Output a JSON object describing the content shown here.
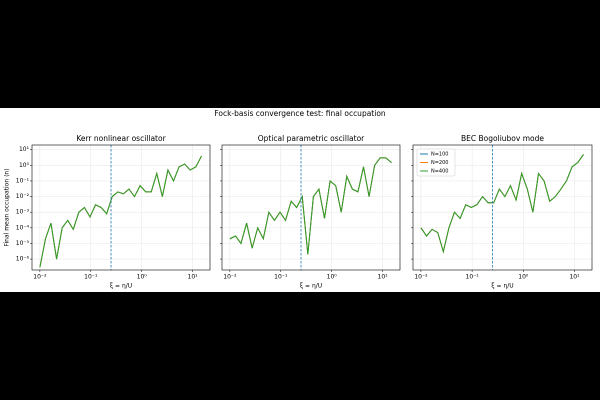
{
  "chart_data": [
    {
      "type": "line",
      "title": "Kerr nonlinear oscillator",
      "suptitle": "Fock-basis convergence test: final occupation",
      "x_label": "ξ = η/U",
      "y_label": "Final mean occupation ⟨n⟩",
      "log_x": true,
      "log_y": true,
      "grid": true,
      "xlim": [
        0.007,
        22
      ],
      "ylim": [
        2e-07,
        20
      ],
      "xticks": [
        {
          "value": 0.01,
          "label": "10⁻²"
        },
        {
          "value": 0.1,
          "label": "10⁻¹"
        },
        {
          "value": 1,
          "label": "10⁰"
        },
        {
          "value": 10,
          "label": "10¹"
        }
      ],
      "yticks": [
        {
          "value": 1e-06,
          "label": "10⁻⁶"
        },
        {
          "value": 1e-05,
          "label": "10⁻⁵"
        },
        {
          "value": 0.0001,
          "label": "10⁻⁴"
        },
        {
          "value": 0.001,
          "label": "10⁻³"
        },
        {
          "value": 0.01,
          "label": "10⁻²"
        },
        {
          "value": 0.1,
          "label": "10⁻¹"
        },
        {
          "value": 1,
          "label": "10⁰"
        },
        {
          "value": 10,
          "label": "10¹"
        }
      ],
      "vline": 0.25,
      "vline_color": "#1f77b4",
      "x": [
        0.01,
        0.0129,
        0.0165,
        0.0213,
        0.0274,
        0.0352,
        0.0453,
        0.0583,
        0.075,
        0.0965,
        0.124,
        0.16,
        0.205,
        0.264,
        0.34,
        0.437,
        0.562,
        0.723,
        0.93,
        1.2,
        1.54,
        1.98,
        2.55,
        3.28,
        4.22,
        5.43,
        6.98,
        8.98,
        11.6,
        15
      ],
      "series": [
        {
          "color": "#1f77b4",
          "values": [
            3e-07,
            2e-05,
            0.0002,
            1e-06,
            0.0001,
            0.0003,
            8e-05,
            0.001,
            0.002,
            0.0005,
            0.003,
            0.002,
            0.0008,
            0.01,
            0.02,
            0.015,
            0.03,
            0.01,
            0.05,
            0.02,
            0.02,
            0.3,
            0.01,
            0.5,
            0.1,
            0.8,
            1.2,
            0.5,
            0.8,
            4
          ]
        },
        {
          "color": "#ff7f0e",
          "values": [
            3e-07,
            2e-05,
            0.0002,
            1e-06,
            0.0001,
            0.0003,
            8e-05,
            0.001,
            0.002,
            0.0005,
            0.003,
            0.002,
            0.0008,
            0.01,
            0.02,
            0.015,
            0.03,
            0.01,
            0.05,
            0.02,
            0.02,
            0.3,
            0.01,
            0.5,
            0.1,
            0.8,
            1.2,
            0.5,
            0.8,
            4
          ]
        },
        {
          "color": "#2ca02c",
          "values": [
            3e-07,
            2e-05,
            0.0002,
            1e-06,
            0.0001,
            0.0003,
            8e-05,
            0.001,
            0.002,
            0.0005,
            0.003,
            0.002,
            0.0008,
            0.01,
            0.02,
            0.015,
            0.03,
            0.01,
            0.05,
            0.02,
            0.02,
            0.3,
            0.01,
            0.5,
            0.1,
            0.8,
            1.2,
            0.5,
            0.8,
            4
          ]
        }
      ]
    },
    {
      "type": "line",
      "title": "Optical parametric oscillator",
      "x_label": "ξ = η/U",
      "log_x": true,
      "log_y": true,
      "grid": true,
      "xlim": [
        0.007,
        22
      ],
      "ylim": [
        2e-07,
        20
      ],
      "xticks": [
        {
          "value": 0.01,
          "label": "10⁻²"
        },
        {
          "value": 0.1,
          "label": "10⁻¹"
        },
        {
          "value": 1,
          "label": "10⁰"
        },
        {
          "value": 10,
          "label": "10¹"
        }
      ],
      "vline": 0.25,
      "vline_color": "#1f77b4",
      "x": [
        0.01,
        0.0129,
        0.0165,
        0.0213,
        0.0274,
        0.0352,
        0.0453,
        0.0583,
        0.075,
        0.0965,
        0.124,
        0.16,
        0.205,
        0.264,
        0.34,
        0.437,
        0.562,
        0.723,
        0.93,
        1.2,
        1.54,
        1.98,
        2.55,
        3.28,
        4.22,
        5.43,
        6.98,
        8.98,
        11.6,
        15
      ],
      "series": [
        {
          "color": "#1f77b4",
          "values": [
            2e-05,
            3e-05,
            1e-05,
            0.0002,
            5e-06,
            0.0001,
            2e-05,
            0.001,
            0.0003,
            0.001,
            0.0003,
            0.005,
            0.002,
            0.01,
            2e-06,
            0.01,
            0.03,
            0.0004,
            0.1,
            0.05,
            0.001,
            0.2,
            0.03,
            0.02,
            0.8,
            0.01,
            1,
            3,
            3,
            1.5
          ]
        },
        {
          "color": "#ff7f0e",
          "values": [
            2e-05,
            3e-05,
            1e-05,
            0.0002,
            5e-06,
            0.0001,
            2e-05,
            0.001,
            0.0003,
            0.001,
            0.0003,
            0.005,
            0.002,
            0.01,
            2e-06,
            0.01,
            0.03,
            0.0004,
            0.1,
            0.05,
            0.001,
            0.2,
            0.03,
            0.02,
            0.8,
            0.01,
            1,
            3,
            3,
            1.5
          ]
        },
        {
          "color": "#2ca02c",
          "values": [
            2e-05,
            3e-05,
            1e-05,
            0.0002,
            5e-06,
            0.0001,
            2e-05,
            0.001,
            0.0003,
            0.001,
            0.0003,
            0.005,
            0.002,
            0.01,
            2e-06,
            0.01,
            0.03,
            0.0004,
            0.1,
            0.05,
            0.001,
            0.2,
            0.03,
            0.02,
            0.8,
            0.01,
            1,
            3,
            3,
            1.5
          ]
        }
      ]
    },
    {
      "type": "line",
      "title": "BEC Bogoliubov mode",
      "x_label": "ξ = η/U",
      "log_x": true,
      "log_y": true,
      "grid": true,
      "legend": "upper left",
      "xlim": [
        0.007,
        22
      ],
      "ylim": [
        2e-07,
        20
      ],
      "xticks": [
        {
          "value": 0.01,
          "label": "10⁻²"
        },
        {
          "value": 0.1,
          "label": "10⁻¹"
        },
        {
          "value": 1,
          "label": "10⁰"
        },
        {
          "value": 10,
          "label": "10¹"
        }
      ],
      "vline": 0.25,
      "vline_color": "#1f77b4",
      "x": [
        0.01,
        0.0129,
        0.0165,
        0.0213,
        0.0274,
        0.0352,
        0.0453,
        0.0583,
        0.075,
        0.0965,
        0.124,
        0.16,
        0.205,
        0.264,
        0.34,
        0.437,
        0.562,
        0.723,
        0.93,
        1.2,
        1.54,
        1.98,
        2.55,
        3.28,
        4.22,
        5.43,
        6.98,
        8.98,
        11.6,
        15
      ],
      "series": [
        {
          "name": "N=100",
          "color": "#1f77b4",
          "values": [
            0.0001,
            3e-05,
            8e-05,
            5e-05,
            3e-06,
            0.0001,
            0.001,
            0.0004,
            0.003,
            0.002,
            0.003,
            0.01,
            0.004,
            0.004,
            0.03,
            0.01,
            0.05,
            0.006,
            0.3,
            0.03,
            0.001,
            0.3,
            0.1,
            0.005,
            0.01,
            0.03,
            0.1,
            0.8,
            1.5,
            5
          ]
        },
        {
          "name": "N=200",
          "color": "#ff7f0e",
          "values": [
            0.0001,
            3e-05,
            8e-05,
            5e-05,
            3e-06,
            0.0001,
            0.001,
            0.0004,
            0.003,
            0.002,
            0.003,
            0.01,
            0.004,
            0.004,
            0.03,
            0.01,
            0.05,
            0.006,
            0.3,
            0.03,
            0.001,
            0.3,
            0.1,
            0.005,
            0.01,
            0.03,
            0.1,
            0.8,
            1.5,
            5
          ]
        },
        {
          "name": "N=400",
          "color": "#2ca02c",
          "values": [
            0.0001,
            3e-05,
            8e-05,
            5e-05,
            3e-06,
            0.0001,
            0.001,
            0.0004,
            0.003,
            0.002,
            0.003,
            0.01,
            0.004,
            0.004,
            0.03,
            0.01,
            0.05,
            0.006,
            0.3,
            0.03,
            0.001,
            0.3,
            0.1,
            0.005,
            0.01,
            0.03,
            0.1,
            0.8,
            1.5,
            5
          ]
        }
      ]
    }
  ]
}
